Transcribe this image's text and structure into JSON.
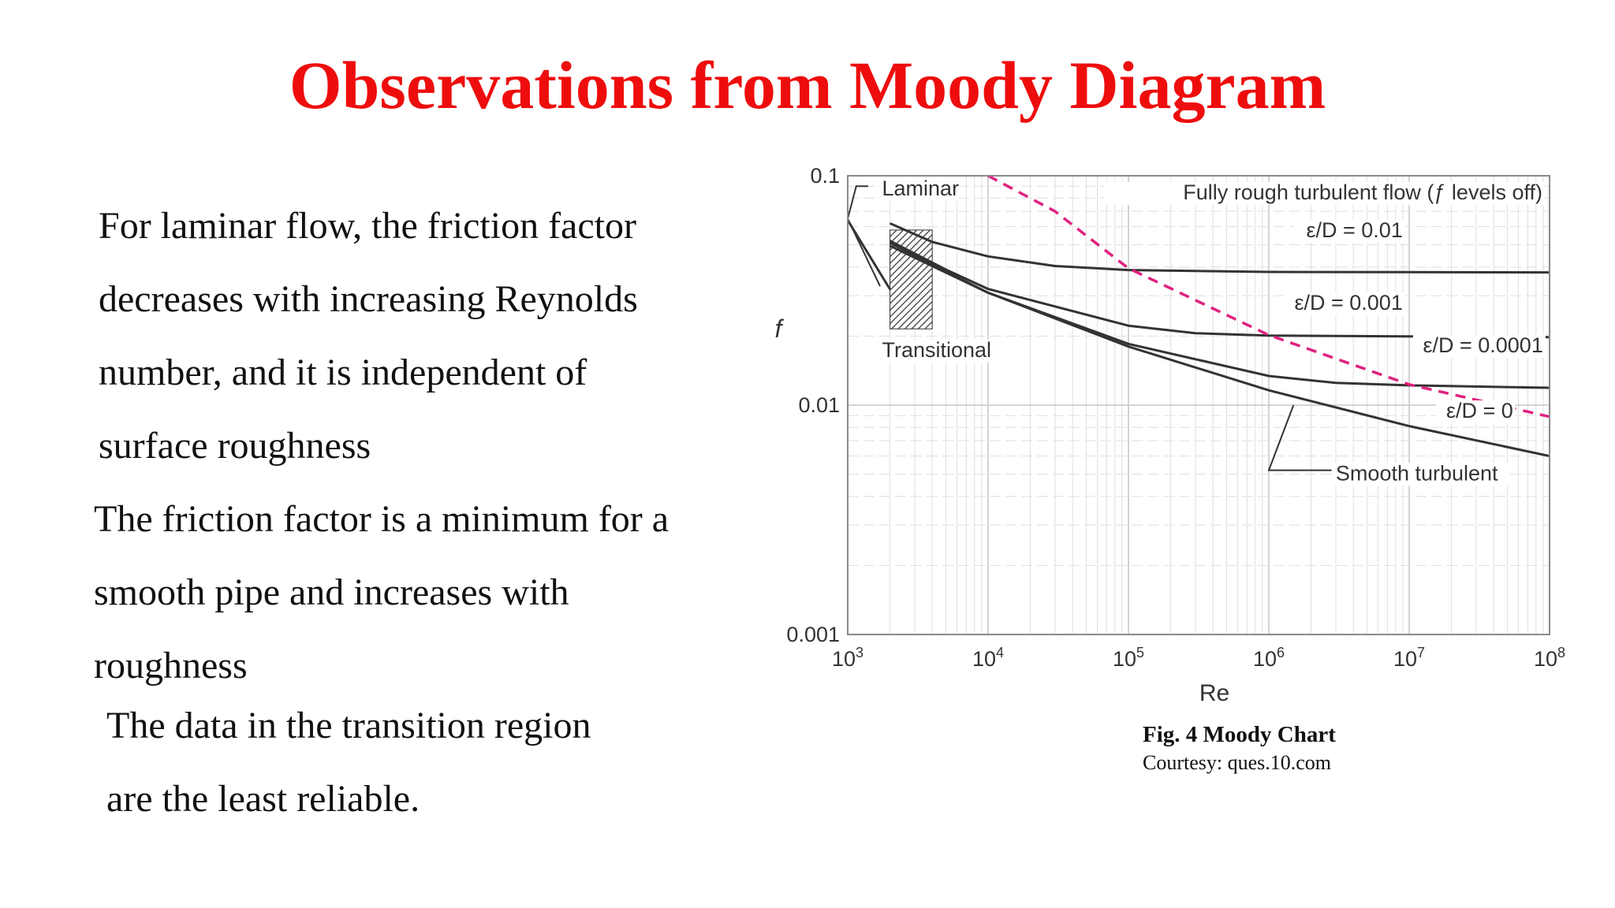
{
  "title": "Observations from Moody Diagram",
  "paragraphs": [
    [
      "For laminar flow, the friction factor",
      "decreases with increasing Reynolds",
      "number, and it is independent of",
      "surface roughness"
    ],
    [
      "The friction factor is a minimum for a",
      "smooth pipe and increases with",
      "roughness"
    ],
    [
      "The data in the transition region",
      "are the least reliable."
    ]
  ],
  "caption": {
    "title": "Fig. 4 Moody Chart",
    "credit": "Courtesy: ques.10.com"
  },
  "chart_data": {
    "type": "line",
    "title": "",
    "xlabel": "Re",
    "ylabel": "f",
    "x_scale": "log",
    "y_scale": "log",
    "xlim": [
      1000,
      100000000
    ],
    "ylim": [
      0.001,
      0.1
    ],
    "x_ticks": [
      {
        "value": 1000,
        "base": "10",
        "exp": "3"
      },
      {
        "value": 10000,
        "base": "10",
        "exp": "4"
      },
      {
        "value": 100000,
        "base": "10",
        "exp": "5"
      },
      {
        "value": 1000000,
        "base": "10",
        "exp": "6"
      },
      {
        "value": 10000000,
        "base": "10",
        "exp": "7"
      },
      {
        "value": 100000000,
        "base": "10",
        "exp": "8"
      }
    ],
    "y_ticks": [
      {
        "value": 0.1,
        "label": "0.1"
      },
      {
        "value": 0.01,
        "label": "0.01"
      },
      {
        "value": 0.001,
        "label": "0.001"
      }
    ],
    "grid": true,
    "series": [
      {
        "name": "Laminar",
        "style": "solid",
        "color": "#333333",
        "x": [
          1000,
          2000
        ],
        "y": [
          0.064,
          0.032
        ]
      },
      {
        "name": "ε/D = 0.01",
        "style": "solid",
        "color": "#333333",
        "x": [
          2000,
          4000,
          10000,
          30000,
          100000,
          1000000,
          100000000
        ],
        "y": [
          0.062,
          0.0515,
          0.0445,
          0.0404,
          0.0388,
          0.0381,
          0.0379
        ]
      },
      {
        "name": "ε/D = 0.001",
        "style": "solid",
        "color": "#333333",
        "x": [
          2000,
          5000,
          10000,
          100000,
          300000,
          1000000,
          100000000
        ],
        "y": [
          0.052,
          0.039,
          0.0321,
          0.0222,
          0.0206,
          0.0201,
          0.0198
        ]
      },
      {
        "name": "ε/D = 0.0001",
        "style": "solid",
        "color": "#333333",
        "x": [
          2000,
          10000,
          100000,
          1000000,
          3000000,
          10000000,
          100000000
        ],
        "y": [
          0.051,
          0.0309,
          0.0185,
          0.0134,
          0.0125,
          0.0122,
          0.0119
        ]
      },
      {
        "name": "ε/D = 0",
        "style": "solid",
        "color": "#333333",
        "x": [
          2000,
          10000,
          100000,
          1000000,
          10000000,
          100000000
        ],
        "y": [
          0.0495,
          0.0309,
          0.018,
          0.0116,
          0.0081,
          0.006
        ]
      },
      {
        "name": "Fully rough turbulent flow",
        "style": "dashed",
        "color": "#e0217f",
        "x": [
          10000,
          30000,
          100000,
          1000000,
          10000000,
          100000000
        ],
        "y": [
          0.1,
          0.07,
          0.0395,
          0.0202,
          0.0123,
          0.0089
        ]
      }
    ],
    "transition_band": {
      "x": [
        2000,
        4000
      ],
      "y": [
        0.0215,
        0.058
      ]
    },
    "annotations": [
      {
        "text": "Laminar",
        "x": 3300,
        "y": 0.082,
        "anchor": "middle",
        "size": 27
      },
      {
        "text": "Transitional",
        "x": 4300,
        "y": 0.0162,
        "anchor": "middle",
        "size": 27
      },
      {
        "text": "Fully rough turbulent flow (ƒ levels off)",
        "x": 89000000,
        "y": 0.079,
        "anchor": "end",
        "size": 27
      },
      {
        "text": "ε/D = 0.01",
        "x": 9000000,
        "y": 0.054,
        "anchor": "end",
        "size": 27
      },
      {
        "text": "ε/D = 0.001",
        "x": 9000000,
        "y": 0.026,
        "anchor": "end",
        "size": 27
      },
      {
        "text": "ε/D = 0.0001",
        "x": 90000000,
        "y": 0.017,
        "anchor": "end",
        "size": 27
      },
      {
        "text": "ε/D = 0",
        "x": 55000000,
        "y": 0.0088,
        "anchor": "end",
        "size": 27
      },
      {
        "text": "Smooth turbulent",
        "x": 3000000,
        "y": 0.0047,
        "anchor": "start",
        "size": 27
      }
    ],
    "leaders": [
      {
        "name": "laminar-label-leader",
        "points": [
          [
            1000,
            0.065
          ],
          [
            1150,
            0.09
          ],
          [
            1400,
            0.09
          ]
        ]
      },
      {
        "name": "transitional-label-leader",
        "points": [
          [
            1000,
            0.065
          ],
          [
            1700,
            0.033
          ]
        ]
      },
      {
        "name": "smooth-turbulent-leader",
        "points": [
          [
            1500000,
            0.01
          ],
          [
            1000000,
            0.0052
          ],
          [
            2800000,
            0.0052
          ]
        ]
      }
    ]
  }
}
